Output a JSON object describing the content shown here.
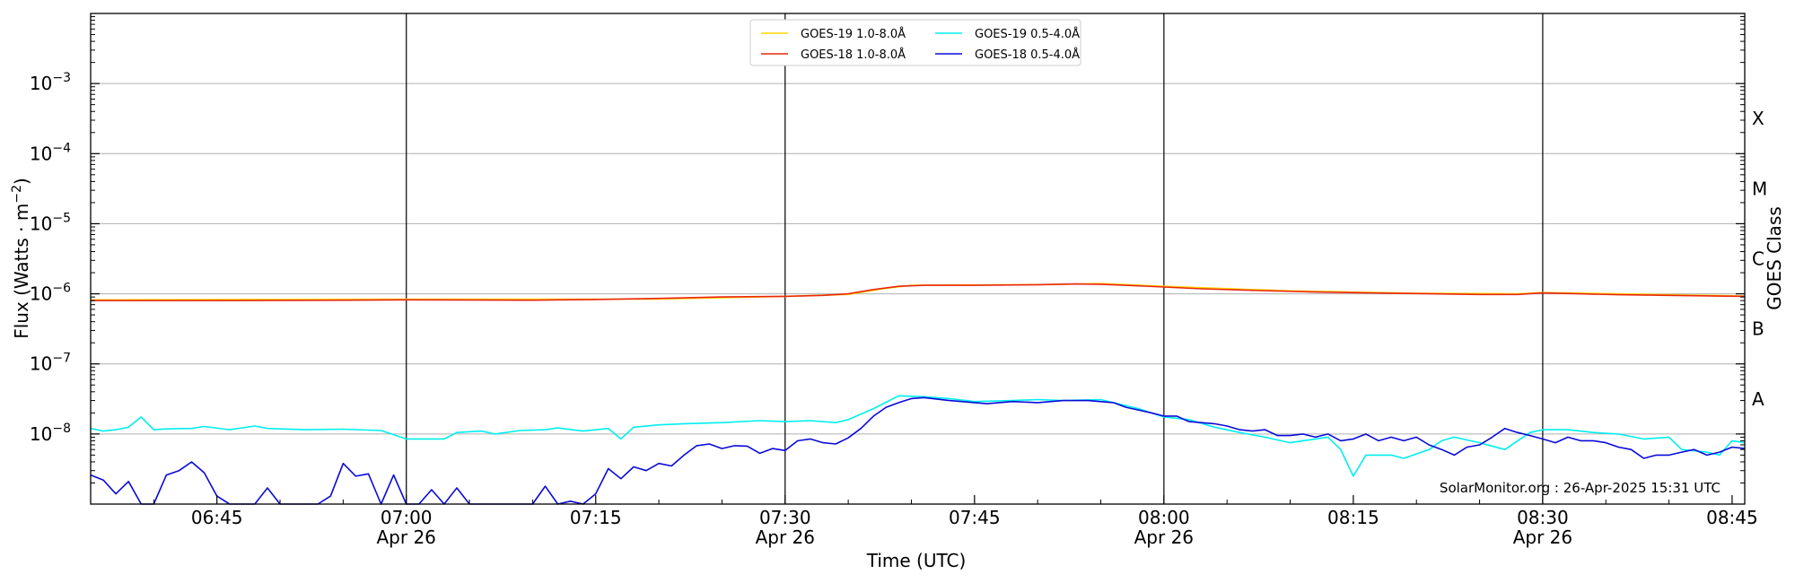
{
  "chart_data": {
    "type": "line",
    "xlabel": "Time (UTC)",
    "ylabel": "Flux (Watts · m",
    "ylabel_sup": "−2",
    "ylabel_close": ")",
    "right_label": "GOES Class",
    "credit": "SolarMonitor.org : 26-Apr-2025 15:31 UTC",
    "x_range_minutes": [
      "06:35",
      "08:46"
    ],
    "y_range": [
      1e-09,
      0.01
    ],
    "y_scale": "log",
    "grid": "horizontal",
    "legend_placement": "top-center",
    "x_ticks": [
      {
        "t": "06:45",
        "label": "06:45",
        "sub": ""
      },
      {
        "t": "07:00",
        "label": "07:00",
        "sub": "Apr 26"
      },
      {
        "t": "07:15",
        "label": "07:15",
        "sub": ""
      },
      {
        "t": "07:30",
        "label": "07:30",
        "sub": "Apr 26"
      },
      {
        "t": "07:45",
        "label": "07:45",
        "sub": ""
      },
      {
        "t": "08:00",
        "label": "08:00",
        "sub": "Apr 26"
      },
      {
        "t": "08:15",
        "label": "08:15",
        "sub": ""
      },
      {
        "t": "08:30",
        "label": "08:30",
        "sub": "Apr 26"
      },
      {
        "t": "08:45",
        "label": "08:45",
        "sub": ""
      }
    ],
    "day_lines": [
      "07:00",
      "07:30",
      "08:00",
      "08:30"
    ],
    "y_ticks": [
      {
        "exp": -8,
        "label": "10",
        "sup": "−8"
      },
      {
        "exp": -7,
        "label": "10",
        "sup": "−7"
      },
      {
        "exp": -6,
        "label": "10",
        "sup": "−6"
      },
      {
        "exp": -5,
        "label": "10",
        "sup": "−5"
      },
      {
        "exp": -4,
        "label": "10",
        "sup": "−4"
      },
      {
        "exp": -3,
        "label": "10",
        "sup": "−3"
      }
    ],
    "goes_classes": [
      {
        "label": "A",
        "exp": -7.5
      },
      {
        "label": "B",
        "exp": -6.5
      },
      {
        "label": "C",
        "exp": -5.5
      },
      {
        "label": "M",
        "exp": -4.5
      },
      {
        "label": "X",
        "exp": -3.5
      }
    ],
    "series": [
      {
        "name": "GOES-19 1.0-8.0Å",
        "color": "#ffd700",
        "points": [
          [
            "06:35",
            8.2e-07
          ],
          [
            "07:00",
            8.4e-07
          ],
          [
            "07:20",
            8.4e-07
          ],
          [
            "07:30",
            9.2e-07
          ],
          [
            "07:35",
            9.8e-07
          ],
          [
            "07:38",
            1.2e-06
          ],
          [
            "07:40",
            1.32e-06
          ],
          [
            "07:50",
            1.35e-06
          ],
          [
            "07:55",
            1.4e-06
          ],
          [
            "08:00",
            1.28e-06
          ],
          [
            "08:10",
            1.1e-06
          ],
          [
            "08:20",
            1.02e-06
          ],
          [
            "08:28",
            1e-06
          ],
          [
            "08:30",
            1.04e-06
          ],
          [
            "08:40",
            9.7e-07
          ],
          [
            "08:46",
            9.3e-07
          ]
        ]
      },
      {
        "name": "GOES-18 1.0-8.0Å",
        "color": "#e8280f",
        "points": [
          [
            "06:35",
            8e-07
          ],
          [
            "06:45",
            8e-07
          ],
          [
            "06:55",
            8.1e-07
          ],
          [
            "07:00",
            8.2e-07
          ],
          [
            "07:10",
            8.1e-07
          ],
          [
            "07:15",
            8.3e-07
          ],
          [
            "07:20",
            8.6e-07
          ],
          [
            "07:25",
            9e-07
          ],
          [
            "07:30",
            9.2e-07
          ],
          [
            "07:33",
            9.5e-07
          ],
          [
            "07:35",
            1e-06
          ],
          [
            "07:37",
            1.15e-06
          ],
          [
            "07:39",
            1.28e-06
          ],
          [
            "07:41",
            1.32e-06
          ],
          [
            "07:45",
            1.32e-06
          ],
          [
            "07:50",
            1.35e-06
          ],
          [
            "07:53",
            1.38e-06
          ],
          [
            "07:55",
            1.37e-06
          ],
          [
            "07:58",
            1.3e-06
          ],
          [
            "08:00",
            1.25e-06
          ],
          [
            "08:03",
            1.18e-06
          ],
          [
            "08:07",
            1.12e-06
          ],
          [
            "08:12",
            1.06e-06
          ],
          [
            "08:18",
            1.02e-06
          ],
          [
            "08:25",
            9.8e-07
          ],
          [
            "08:28",
            9.8e-07
          ],
          [
            "08:30",
            1.03e-06
          ],
          [
            "08:33",
            1e-06
          ],
          [
            "08:36",
            9.7e-07
          ],
          [
            "08:40",
            9.5e-07
          ],
          [
            "08:46",
            9.2e-07
          ]
        ]
      },
      {
        "name": "GOES-19 0.5-4.0Å",
        "color": "#00eeee",
        "points": [
          [
            "06:35",
            1.2e-08
          ],
          [
            "06:36",
            1.1e-08
          ],
          [
            "06:37",
            1.15e-08
          ],
          [
            "06:38",
            1.25e-08
          ],
          [
            "06:39",
            1.75e-08
          ],
          [
            "06:40",
            1.15e-08
          ],
          [
            "06:41",
            1.18e-08
          ],
          [
            "06:43",
            1.2e-08
          ],
          [
            "06:44",
            1.28e-08
          ],
          [
            "06:46",
            1.15e-08
          ],
          [
            "06:48",
            1.3e-08
          ],
          [
            "06:49",
            1.2e-08
          ],
          [
            "06:52",
            1.15e-08
          ],
          [
            "06:55",
            1.17e-08
          ],
          [
            "06:58",
            1.12e-08
          ],
          [
            "07:00",
            8.5e-09
          ],
          [
            "07:03",
            8.5e-09
          ],
          [
            "07:04",
            1.05e-08
          ],
          [
            "07:06",
            1.1e-08
          ],
          [
            "07:07",
            1e-08
          ],
          [
            "07:09",
            1.12e-08
          ],
          [
            "07:11",
            1.15e-08
          ],
          [
            "07:12",
            1.22e-08
          ],
          [
            "07:14",
            1.1e-08
          ],
          [
            "07:16",
            1.2e-08
          ],
          [
            "07:17",
            8.5e-09
          ],
          [
            "07:18",
            1.25e-08
          ],
          [
            "07:20",
            1.35e-08
          ],
          [
            "07:22",
            1.4e-08
          ],
          [
            "07:25",
            1.45e-08
          ],
          [
            "07:28",
            1.55e-08
          ],
          [
            "07:30",
            1.5e-08
          ],
          [
            "07:32",
            1.55e-08
          ],
          [
            "07:34",
            1.45e-08
          ],
          [
            "07:35",
            1.6e-08
          ],
          [
            "07:37",
            2.3e-08
          ],
          [
            "07:39",
            3.5e-08
          ],
          [
            "07:41",
            3.4e-08
          ],
          [
            "07:43",
            3.2e-08
          ],
          [
            "07:45",
            2.9e-08
          ],
          [
            "07:48",
            3e-08
          ],
          [
            "07:50",
            3.1e-08
          ],
          [
            "07:52",
            3e-08
          ],
          [
            "07:55",
            3.1e-08
          ],
          [
            "07:58",
            2.3e-08
          ],
          [
            "08:00",
            1.75e-08
          ],
          [
            "08:02",
            1.6e-08
          ],
          [
            "08:04",
            1.25e-08
          ],
          [
            "08:06",
            1.05e-08
          ],
          [
            "08:08",
            9e-09
          ],
          [
            "08:10",
            7.5e-09
          ],
          [
            "08:12",
            8.5e-09
          ],
          [
            "08:13",
            9e-09
          ],
          [
            "08:14",
            6e-09
          ],
          [
            "08:15",
            2.5e-09
          ],
          [
            "08:16",
            5e-09
          ],
          [
            "08:18",
            5e-09
          ],
          [
            "08:19",
            4.5e-09
          ],
          [
            "08:21",
            6e-09
          ],
          [
            "08:22",
            8e-09
          ],
          [
            "08:23",
            9e-09
          ],
          [
            "08:25",
            7.5e-09
          ],
          [
            "08:27",
            6e-09
          ],
          [
            "08:29",
            1.05e-08
          ],
          [
            "08:30",
            1.15e-08
          ],
          [
            "08:32",
            1.15e-08
          ],
          [
            "08:34",
            1.05e-08
          ],
          [
            "08:36",
            1e-08
          ],
          [
            "08:38",
            8.5e-09
          ],
          [
            "08:40",
            9e-09
          ],
          [
            "08:41",
            6e-09
          ],
          [
            "08:43",
            5.5e-09
          ],
          [
            "08:44",
            5e-09
          ],
          [
            "08:45",
            8e-09
          ],
          [
            "08:46",
            7.5e-09
          ]
        ]
      },
      {
        "name": "GOES-18 0.5-4.0Å",
        "color": "#0a0ad8",
        "points": [
          [
            "06:35",
            2.6e-09
          ],
          [
            "06:36",
            2.2e-09
          ],
          [
            "06:37",
            1.4e-09
          ],
          [
            "06:38",
            2.1e-09
          ],
          [
            "06:39",
            1e-09
          ],
          [
            "06:40",
            1e-09
          ],
          [
            "06:41",
            2.6e-09
          ],
          [
            "06:42",
            3e-09
          ],
          [
            "06:43",
            4e-09
          ],
          [
            "06:44",
            2.8e-09
          ],
          [
            "06:45",
            1.3e-09
          ],
          [
            "06:46",
            1e-09
          ],
          [
            "06:48",
            1e-09
          ],
          [
            "06:49",
            1.7e-09
          ],
          [
            "06:50",
            1e-09
          ],
          [
            "06:53",
            1e-09
          ],
          [
            "06:54",
            1.3e-09
          ],
          [
            "06:55",
            3.8e-09
          ],
          [
            "06:56",
            2.5e-09
          ],
          [
            "06:57",
            2.7e-09
          ],
          [
            "06:58",
            1e-09
          ],
          [
            "06:59",
            2.6e-09
          ],
          [
            "07:00",
            1e-09
          ],
          [
            "07:01",
            1e-09
          ],
          [
            "07:02",
            1.6e-09
          ],
          [
            "07:03",
            1e-09
          ],
          [
            "07:04",
            1.7e-09
          ],
          [
            "07:05",
            1e-09
          ],
          [
            "07:10",
            1e-09
          ],
          [
            "07:11",
            1.8e-09
          ],
          [
            "07:12",
            1e-09
          ],
          [
            "07:13",
            1.1e-09
          ],
          [
            "07:14",
            1e-09
          ],
          [
            "07:15",
            1.4e-09
          ],
          [
            "07:16",
            3.2e-09
          ],
          [
            "07:17",
            2.3e-09
          ],
          [
            "07:18",
            3.4e-09
          ],
          [
            "07:19",
            3e-09
          ],
          [
            "07:20",
            3.8e-09
          ],
          [
            "07:21",
            3.5e-09
          ],
          [
            "07:22",
            5e-09
          ],
          [
            "07:23",
            6.8e-09
          ],
          [
            "07:24",
            7.2e-09
          ],
          [
            "07:25",
            6.2e-09
          ],
          [
            "07:26",
            6.8e-09
          ],
          [
            "07:27",
            6.7e-09
          ],
          [
            "07:28",
            5.3e-09
          ],
          [
            "07:29",
            6.2e-09
          ],
          [
            "07:30",
            5.8e-09
          ],
          [
            "07:31",
            8e-09
          ],
          [
            "07:32",
            8.5e-09
          ],
          [
            "07:33",
            7.5e-09
          ],
          [
            "07:34",
            7.2e-09
          ],
          [
            "07:35",
            8.8e-09
          ],
          [
            "07:36",
            1.2e-08
          ],
          [
            "07:37",
            1.8e-08
          ],
          [
            "07:38",
            2.4e-08
          ],
          [
            "07:39",
            2.8e-08
          ],
          [
            "07:40",
            3.2e-08
          ],
          [
            "07:41",
            3.3e-08
          ],
          [
            "07:43",
            3e-08
          ],
          [
            "07:44",
            2.9e-08
          ],
          [
            "07:45",
            2.8e-08
          ],
          [
            "07:46",
            2.7e-08
          ],
          [
            "07:48",
            2.9e-08
          ],
          [
            "07:50",
            2.8e-08
          ],
          [
            "07:52",
            3e-08
          ],
          [
            "07:54",
            3e-08
          ],
          [
            "07:56",
            2.8e-08
          ],
          [
            "07:57",
            2.4e-08
          ],
          [
            "07:59",
            2e-08
          ],
          [
            "08:00",
            1.8e-08
          ],
          [
            "08:01",
            1.8e-08
          ],
          [
            "08:02",
            1.5e-08
          ],
          [
            "08:04",
            1.4e-08
          ],
          [
            "08:05",
            1.3e-08
          ],
          [
            "08:06",
            1.15e-08
          ],
          [
            "08:07",
            1.1e-08
          ],
          [
            "08:08",
            1.15e-08
          ],
          [
            "08:09",
            9.5e-09
          ],
          [
            "08:10",
            9.5e-09
          ],
          [
            "08:11",
            1e-08
          ],
          [
            "08:12",
            9e-09
          ],
          [
            "08:13",
            1e-08
          ],
          [
            "08:14",
            8e-09
          ],
          [
            "08:15",
            8.5e-09
          ],
          [
            "08:16",
            1e-08
          ],
          [
            "08:17",
            8e-09
          ],
          [
            "08:18",
            9e-09
          ],
          [
            "08:19",
            8e-09
          ],
          [
            "08:20",
            9e-09
          ],
          [
            "08:21",
            7e-09
          ],
          [
            "08:22",
            6e-09
          ],
          [
            "08:23",
            5e-09
          ],
          [
            "08:24",
            6.5e-09
          ],
          [
            "08:25",
            7e-09
          ],
          [
            "08:26",
            9e-09
          ],
          [
            "08:27",
            1.2e-08
          ],
          [
            "08:28",
            1.05e-08
          ],
          [
            "08:29",
            9.5e-09
          ],
          [
            "08:30",
            8.5e-09
          ],
          [
            "08:31",
            7.5e-09
          ],
          [
            "08:32",
            9e-09
          ],
          [
            "08:33",
            8e-09
          ],
          [
            "08:34",
            8e-09
          ],
          [
            "08:35",
            7.5e-09
          ],
          [
            "08:36",
            6.5e-09
          ],
          [
            "08:37",
            6e-09
          ],
          [
            "08:38",
            4.5e-09
          ],
          [
            "08:39",
            5e-09
          ],
          [
            "08:40",
            5e-09
          ],
          [
            "08:41",
            5.5e-09
          ],
          [
            "08:42",
            6e-09
          ],
          [
            "08:43",
            5e-09
          ],
          [
            "08:44",
            5.5e-09
          ],
          [
            "08:45",
            6.5e-09
          ],
          [
            "08:46",
            6.2e-09
          ]
        ]
      }
    ]
  }
}
